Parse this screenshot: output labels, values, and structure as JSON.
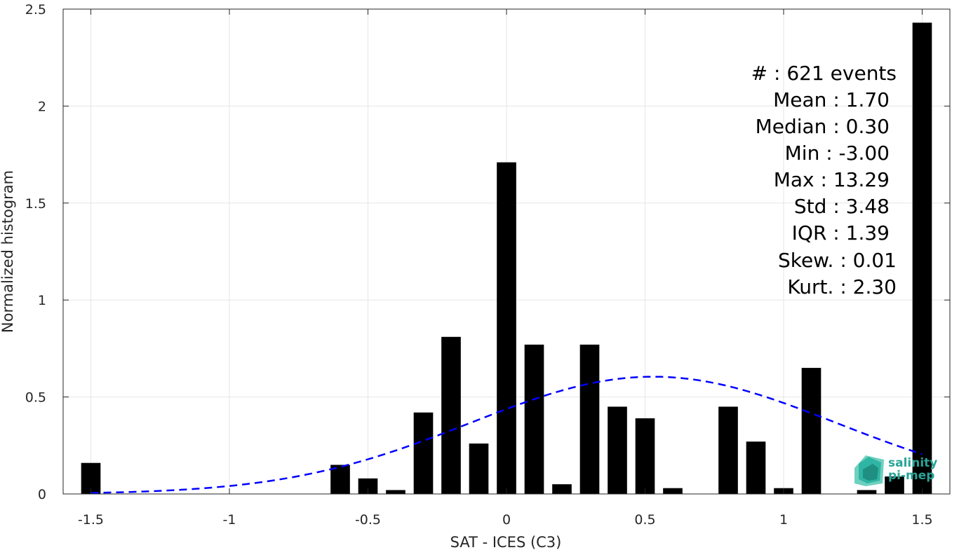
{
  "chart_data": {
    "type": "bar",
    "xlabel": "SAT - ICES (C3)",
    "ylabel": "Normalized histogram",
    "xlim": [
      -1.6,
      1.6
    ],
    "ylim": [
      0,
      2.5
    ],
    "grid": true,
    "xticks": [
      -1.5,
      -1,
      -0.5,
      0,
      0.5,
      1,
      1.5
    ],
    "xtick_labels": [
      "-1.5",
      "-1",
      "-0.5",
      "0",
      "0.5",
      "1",
      "1.5"
    ],
    "yticks": [
      0,
      0.5,
      1,
      1.5,
      2,
      2.5
    ],
    "ytick_labels": [
      "0",
      "0.5",
      "1",
      "1.5",
      "2",
      "2.5"
    ],
    "bar_width": 0.07,
    "bar_color": "#000000",
    "bars": [
      {
        "x": -1.5,
        "y": 0.16
      },
      {
        "x": -0.6,
        "y": 0.15
      },
      {
        "x": -0.5,
        "y": 0.08
      },
      {
        "x": -0.4,
        "y": 0.02
      },
      {
        "x": -0.3,
        "y": 0.42
      },
      {
        "x": -0.2,
        "y": 0.81
      },
      {
        "x": -0.1,
        "y": 0.26
      },
      {
        "x": 0.0,
        "y": 1.71
      },
      {
        "x": 0.1,
        "y": 0.77
      },
      {
        "x": 0.2,
        "y": 0.05
      },
      {
        "x": 0.3,
        "y": 0.77
      },
      {
        "x": 0.4,
        "y": 0.45
      },
      {
        "x": 0.5,
        "y": 0.39
      },
      {
        "x": 0.6,
        "y": 0.03
      },
      {
        "x": 0.8,
        "y": 0.45
      },
      {
        "x": 0.9,
        "y": 0.27
      },
      {
        "x": 1.0,
        "y": 0.03
      },
      {
        "x": 1.1,
        "y": 0.65
      },
      {
        "x": 1.3,
        "y": 0.02
      },
      {
        "x": 1.4,
        "y": 0.09
      },
      {
        "x": 1.5,
        "y": 2.43
      }
    ],
    "fit_curve": {
      "style": "dashed",
      "color": "#0000ff",
      "mean": 0.53,
      "std": 0.66,
      "x_start": -1.5,
      "x_end": 1.5
    }
  },
  "stats": [
    "#  : 621 events",
    "Mean : 1.70",
    "Median : 0.30",
    "Min : -3.00",
    "Max : 13.29",
    "Std : 3.48",
    "IQR : 1.39",
    "Skew. : 0.01",
    "Kurt. : 2.30"
  ],
  "logo": {
    "line1": "salinity",
    "line2": "pi-mep",
    "color": "#27a597"
  }
}
